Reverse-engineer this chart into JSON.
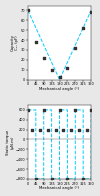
{
  "top": {
    "ylabel": "Capacity\nC₁₁ (pF)",
    "xlabel": "Mechanical angle (°)",
    "ylim": [
      0,
      75
    ],
    "xlim": [
      0,
      360
    ],
    "yticks": [
      0,
      10,
      20,
      30,
      40,
      50,
      60,
      70
    ],
    "xticks": [
      0,
      45,
      90,
      135,
      180,
      225,
      270,
      315,
      360
    ],
    "line_color": "#00ccff",
    "scatter_color": "#333333",
    "line_x": [
      0,
      180,
      360
    ],
    "line_y": [
      70,
      0,
      70
    ],
    "scatter_x": [
      0,
      45,
      90,
      135,
      180,
      225,
      270,
      315,
      360
    ],
    "scatter_y": [
      70,
      38,
      22,
      10,
      3,
      12,
      32,
      52,
      68
    ]
  },
  "bottom": {
    "ylabel": "Static torque\n(µN.m)",
    "xlabel": "Mechanical angle (°)",
    "ylim": [
      -800,
      700
    ],
    "xlim": [
      0,
      360
    ],
    "yticks": [
      -800,
      -600,
      -400,
      -200,
      0,
      200,
      400,
      600
    ],
    "xticks": [
      0,
      45,
      90,
      135,
      180,
      225,
      270,
      315,
      360
    ],
    "line_color": "#00ccff",
    "scatter_color": "#333333",
    "line_x": [
      0,
      22.5,
      45,
      67.5,
      90,
      112.5,
      135,
      157.5,
      180,
      202.5,
      225,
      247.5,
      270,
      292.5,
      315,
      337.5,
      360
    ],
    "line_y": [
      600,
      600,
      -800,
      600,
      600,
      600,
      -800,
      600,
      600,
      600,
      -800,
      600,
      600,
      600,
      -800,
      600,
      600
    ],
    "scatter_x": [
      0,
      22.5,
      45,
      67.5,
      90,
      112.5,
      135,
      157.5,
      180,
      202.5,
      225,
      247.5,
      270,
      292.5,
      315,
      337.5,
      360
    ],
    "scatter_y": [
      600,
      200,
      -800,
      200,
      600,
      200,
      -800,
      200,
      600,
      200,
      -800,
      200,
      600,
      200,
      -800,
      200,
      600
    ]
  },
  "bg_color": "#e8e8e8",
  "plot_bg": "#ffffff"
}
